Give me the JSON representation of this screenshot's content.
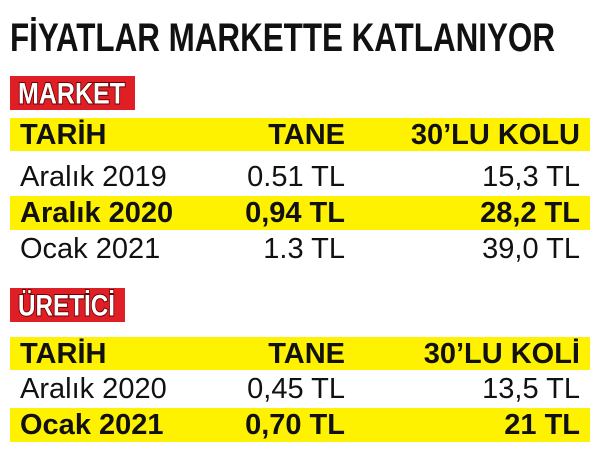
{
  "title": "FİYATLAR MARKETTE KATLANIYOR",
  "sections": [
    {
      "label": "MARKET",
      "header": [
        "TARİH",
        "TANE",
        "30’LU KOLU"
      ],
      "rows": [
        [
          "Aralık 2019",
          "0.51 TL",
          "15,3 TL"
        ],
        [
          "Aralık 2020",
          "0,94 TL",
          "28,2 TL"
        ],
        [
          "Ocak 2021",
          "1.3 TL",
          "39,0 TL"
        ]
      ]
    },
    {
      "label": "ÜRETİCİ",
      "header": [
        "TARİH",
        "TANE",
        "30’LU KOLİ"
      ],
      "rows": [
        [
          "Aralık 2020",
          "0,45 TL",
          "13,5 TL"
        ],
        [
          "Ocak 2021",
          "0,70 TL",
          "21 TL"
        ]
      ]
    }
  ]
}
